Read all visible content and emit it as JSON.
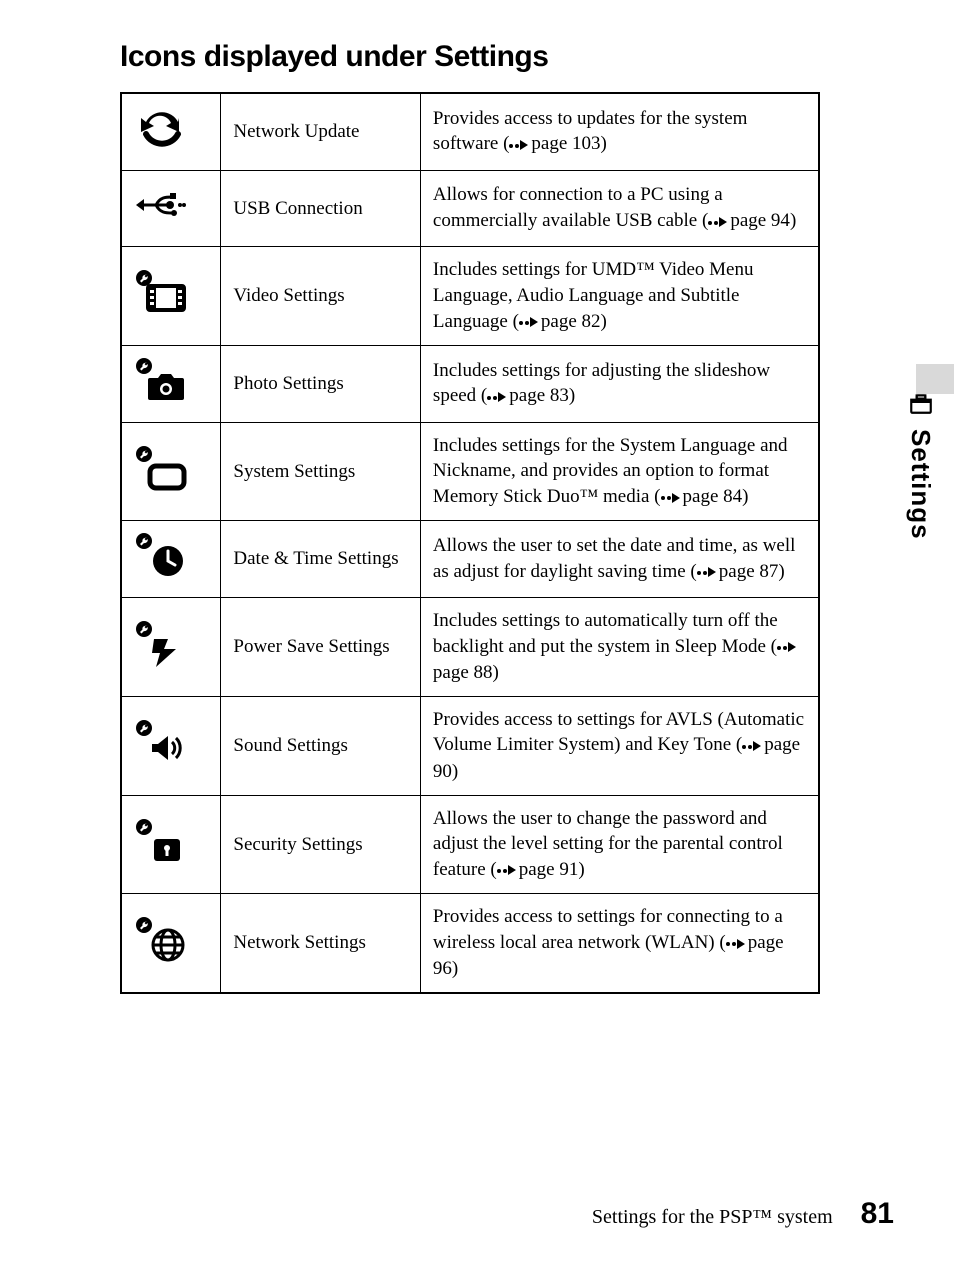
{
  "title": "Icons displayed under Settings",
  "side_tab_label": "Settings",
  "footer_text": "Settings for the PSP™ system",
  "page_number": "81",
  "rows": [
    {
      "icon": "network-update",
      "name": "Network Update",
      "desc_pre": "Provides access to updates for the system software (",
      "page_ref": "page 103",
      "desc_post": ")"
    },
    {
      "icon": "usb-connection",
      "name": "USB Connection",
      "desc_pre": "Allows for connection to a PC using a commercially available USB cable (",
      "page_ref": "page 94",
      "desc_post": ")"
    },
    {
      "icon": "video-settings",
      "name": "Video Settings",
      "desc_pre": "Includes settings for UMD™ Video Menu Language, Audio Language and Subtitle Language (",
      "page_ref": "page 82",
      "desc_post": ")"
    },
    {
      "icon": "photo-settings",
      "name": "Photo Settings",
      "desc_pre": "Includes settings for adjusting the slideshow speed (",
      "page_ref": "page 83",
      "desc_post": ")"
    },
    {
      "icon": "system-settings",
      "name": "System Settings",
      "desc_pre": "Includes settings for the System Language and Nickname, and provides an option to format Memory Stick Duo™ media (",
      "page_ref": "page 84",
      "desc_post": ")"
    },
    {
      "icon": "date-time-settings",
      "name": "Date & Time Settings",
      "desc_pre": "Allows the user to set the date and time, as well as adjust for daylight saving time (",
      "page_ref": "page 87",
      "desc_post": ")"
    },
    {
      "icon": "power-save-settings",
      "name": "Power Save Settings",
      "desc_pre": "Includes settings to automatically turn off the backlight and put the system in Sleep Mode (",
      "page_ref": "page 88",
      "desc_post": ")"
    },
    {
      "icon": "sound-settings",
      "name": "Sound Settings",
      "desc_pre": "Provides access to settings for AVLS (Automatic Volume Limiter System) and Key Tone (",
      "page_ref": "page 90",
      "desc_post": ")"
    },
    {
      "icon": "security-settings",
      "name": "Security Settings",
      "desc_pre": "Allows the user to change the password and adjust the level setting for the parental control feature (",
      "page_ref": "page 91",
      "desc_post": ")"
    },
    {
      "icon": "network-settings",
      "name": "Network Settings",
      "desc_pre": "Provides access to settings for connecting to a wireless local area network (WLAN) (",
      "page_ref": "page 96",
      "desc_post": ")"
    }
  ]
}
